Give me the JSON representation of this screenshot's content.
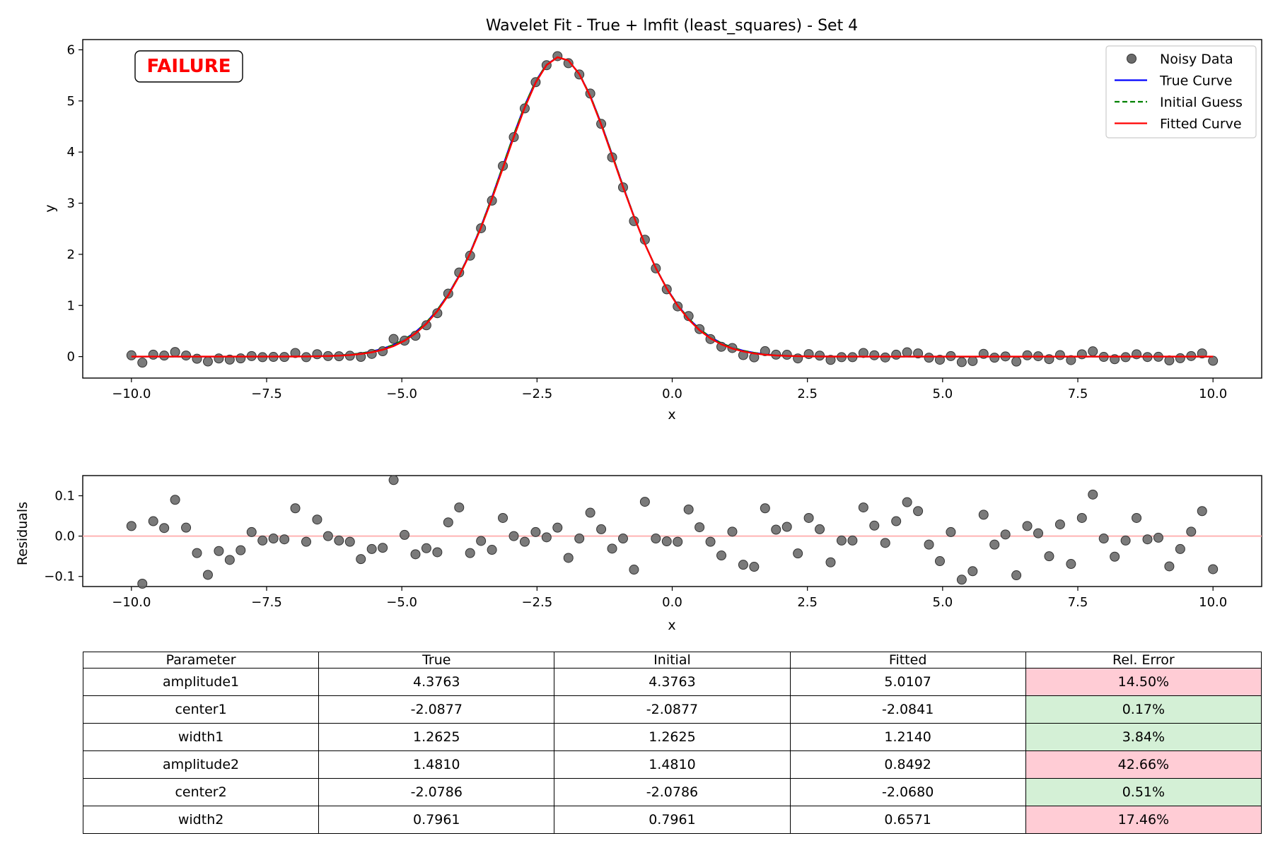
{
  "status_label": "FAILURE",
  "colors": {
    "noisy": "#6b6b6b",
    "true_curve": "#0000ff",
    "initial": "#008000",
    "fitted": "#ff0000",
    "zero_line": "#ffb3b3",
    "bad": "#ffccd5",
    "good": "#d4f0d6",
    "status": "#ff0000"
  },
  "chart_data": [
    {
      "type": "line",
      "title": "Wavelet Fit - True + lmfit (least_squares) - Set 4",
      "xlabel": "x",
      "ylabel": "y",
      "xlim": [
        -10.9,
        10.9
      ],
      "ylim": [
        -0.42,
        6.2
      ],
      "xticks": [
        -10.0,
        -7.5,
        -5.0,
        -2.5,
        0.0,
        2.5,
        5.0,
        7.5,
        10.0
      ],
      "xtick_labels": [
        "−10.0",
        "−7.5",
        "−5.0",
        "−2.5",
        "0.0",
        "2.5",
        "5.0",
        "7.5",
        "10.0"
      ],
      "yticks": [
        0,
        1,
        2,
        3,
        4,
        5,
        6
      ],
      "ytick_labels": [
        "0",
        "1",
        "2",
        "3",
        "4",
        "5",
        "6"
      ],
      "legend_position": "top-right",
      "model": "amplitude1*exp(-((x-center1)/width1)^2/2) + amplitude2*exp(-((x-center2)/width2)^2/2)",
      "series": [
        {
          "name": "Noisy Data",
          "kind": "scatter",
          "x_start": -10.0,
          "x_end": 10.0,
          "count": 100
        },
        {
          "name": "True Curve",
          "kind": "line",
          "params": [
            4.3763,
            -2.0877,
            1.2625,
            1.481,
            -2.0786,
            0.7961
          ]
        },
        {
          "name": "Initial Guess",
          "kind": "dashed",
          "params": [
            4.3763,
            -2.0877,
            1.2625,
            1.481,
            -2.0786,
            0.7961
          ]
        },
        {
          "name": "Fitted Curve",
          "kind": "line",
          "params": [
            5.0107,
            -2.0841,
            1.214,
            0.8492,
            -2.068,
            0.6571
          ]
        }
      ]
    },
    {
      "type": "scatter",
      "xlabel": "x",
      "ylabel": "Residuals",
      "xlim": [
        -10.9,
        10.9
      ],
      "ylim": [
        -0.125,
        0.15
      ],
      "xticks": [
        -10.0,
        -7.5,
        -5.0,
        -2.5,
        0.0,
        2.5,
        5.0,
        7.5,
        10.0
      ],
      "xtick_labels": [
        "−10.0",
        "−7.5",
        "−5.0",
        "−2.5",
        "0.0",
        "2.5",
        "5.0",
        "7.5",
        "10.0"
      ],
      "yticks": [
        -0.1,
        0.0,
        0.1
      ],
      "ytick_labels": [
        "−0.1",
        "0.0",
        "0.1"
      ],
      "residuals": [
        0.025,
        -0.118,
        0.037,
        0.02,
        0.09,
        0.021,
        -0.042,
        -0.096,
        -0.037,
        -0.059,
        -0.035,
        0.01,
        -0.011,
        -0.006,
        -0.008,
        0.069,
        -0.014,
        0.041,
        0.0,
        -0.011,
        -0.014,
        -0.057,
        -0.032,
        -0.029,
        0.139,
        0.003,
        -0.045,
        -0.03,
        -0.04,
        0.034,
        0.071,
        -0.042,
        -0.012,
        -0.034,
        0.045,
        0.0,
        -0.014,
        0.01,
        -0.003,
        0.021,
        -0.054,
        -0.006,
        0.058,
        0.017,
        -0.031,
        -0.006,
        -0.083,
        0.085,
        -0.006,
        -0.013,
        -0.014,
        0.066,
        0.022,
        -0.014,
        -0.048,
        0.011,
        -0.071,
        -0.076,
        0.069,
        0.016,
        0.023,
        -0.043,
        0.045,
        0.017,
        -0.065,
        -0.011,
        -0.011,
        0.071,
        0.026,
        -0.017,
        0.037,
        0.084,
        0.062,
        -0.021,
        -0.062,
        0.01,
        -0.108,
        -0.087,
        0.053,
        -0.021,
        0.004,
        -0.097,
        0.025,
        0.007,
        -0.05,
        0.029,
        -0.069,
        0.045,
        0.103,
        -0.006,
        -0.051,
        -0.011,
        0.045,
        -0.008,
        -0.004,
        -0.075,
        -0.032,
        0.011,
        0.062,
        -0.082
      ]
    }
  ],
  "table": {
    "headers": [
      "Parameter",
      "True",
      "Initial",
      "Fitted",
      "Rel. Error"
    ],
    "rows": [
      [
        "amplitude1",
        "4.3763",
        "4.3763",
        "5.0107",
        "14.50%"
      ],
      [
        "center1",
        "-2.0877",
        "-2.0877",
        "-2.0841",
        "0.17%"
      ],
      [
        "width1",
        "1.2625",
        "1.2625",
        "1.2140",
        "3.84%"
      ],
      [
        "amplitude2",
        "1.4810",
        "1.4810",
        "0.8492",
        "42.66%"
      ],
      [
        "center2",
        "-2.0786",
        "-2.0786",
        "-2.0680",
        "0.51%"
      ],
      [
        "width2",
        "0.7961",
        "0.7961",
        "0.6571",
        "17.46%"
      ]
    ],
    "error_status": [
      "bad",
      "good",
      "good",
      "bad",
      "good",
      "bad"
    ]
  }
}
